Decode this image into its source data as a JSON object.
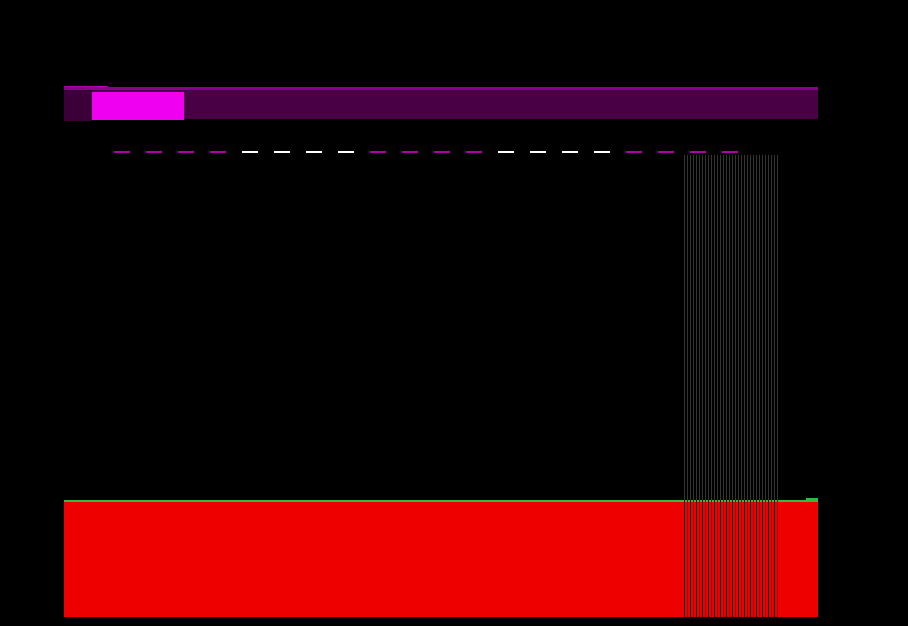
{
  "game": {
    "progress_fraction": 0.122,
    "colors": {
      "background": "#000000",
      "bar_track": "#4a0044",
      "bar_fill": "#f000f0",
      "ground": "#ef0000",
      "ground_edge": "#39b54a",
      "dash_magenta": "#b000b0",
      "dash_white": "#ffffff",
      "hatch": "#5f5f5f"
    },
    "dash_pattern": [
      "magenta",
      "magenta",
      "magenta",
      "magenta",
      "white",
      "white",
      "white",
      "white",
      "magenta",
      "magenta",
      "magenta",
      "magenta",
      "white",
      "white",
      "white",
      "white",
      "magenta",
      "magenta",
      "magenta",
      "magenta"
    ]
  }
}
